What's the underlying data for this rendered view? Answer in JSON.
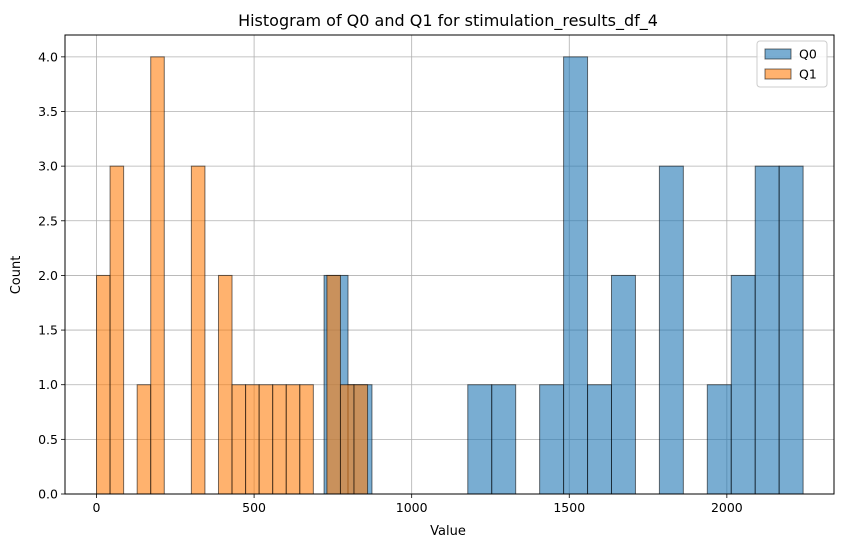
{
  "chart_data": {
    "type": "histogram",
    "title": "Histogram of Q0 and Q1 for stimulation_results_df_4",
    "xlabel": "Value",
    "ylabel": "Count",
    "xlim": [
      -100,
      2340
    ],
    "ylim": [
      0,
      4.2
    ],
    "x_ticks": [
      {
        "value": 0,
        "label": "0"
      },
      {
        "value": 500,
        "label": "500"
      },
      {
        "value": 1000,
        "label": "1000"
      },
      {
        "value": 1500,
        "label": "1500"
      },
      {
        "value": 2000,
        "label": "2000"
      }
    ],
    "y_ticks": [
      {
        "value": 0,
        "label": "0.0"
      },
      {
        "value": 0.5,
        "label": "0.5"
      },
      {
        "value": 1,
        "label": "1.0"
      },
      {
        "value": 1.5,
        "label": "1.5"
      },
      {
        "value": 2,
        "label": "2.0"
      },
      {
        "value": 2.5,
        "label": "2.5"
      },
      {
        "value": 3,
        "label": "3.0"
      },
      {
        "value": 3.5,
        "label": "3.5"
      },
      {
        "value": 4,
        "label": "4.0"
      }
    ],
    "grid": true,
    "legend_position": "top-right",
    "series": [
      {
        "name": "Q0",
        "color": "#1f77b4",
        "bins": [
          {
            "x0": 722,
            "x1": 798,
            "count": 2
          },
          {
            "x0": 798,
            "x1": 874,
            "count": 1
          },
          {
            "x0": 1178,
            "x1": 1254,
            "count": 1
          },
          {
            "x0": 1254,
            "x1": 1330,
            "count": 1
          },
          {
            "x0": 1406,
            "x1": 1482,
            "count": 1
          },
          {
            "x0": 1482,
            "x1": 1558,
            "count": 4
          },
          {
            "x0": 1558,
            "x1": 1634,
            "count": 1
          },
          {
            "x0": 1634,
            "x1": 1710,
            "count": 2
          },
          {
            "x0": 1786,
            "x1": 1862,
            "count": 3
          },
          {
            "x0": 1938,
            "x1": 2014,
            "count": 1
          },
          {
            "x0": 2014,
            "x1": 2090,
            "count": 2
          },
          {
            "x0": 2090,
            "x1": 2166,
            "count": 3
          },
          {
            "x0": 2166,
            "x1": 2242,
            "count": 3
          }
        ]
      },
      {
        "name": "Q1",
        "color": "#ff7f0e",
        "bins": [
          {
            "x0": 0,
            "x1": 43,
            "count": 2
          },
          {
            "x0": 43,
            "x1": 86,
            "count": 3
          },
          {
            "x0": 129,
            "x1": 172,
            "count": 1
          },
          {
            "x0": 172,
            "x1": 215,
            "count": 4
          },
          {
            "x0": 301,
            "x1": 344,
            "count": 3
          },
          {
            "x0": 387,
            "x1": 430,
            "count": 2
          },
          {
            "x0": 430,
            "x1": 473,
            "count": 1
          },
          {
            "x0": 473,
            "x1": 516,
            "count": 1
          },
          {
            "x0": 516,
            "x1": 559,
            "count": 1
          },
          {
            "x0": 559,
            "x1": 602,
            "count": 1
          },
          {
            "x0": 602,
            "x1": 645,
            "count": 1
          },
          {
            "x0": 645,
            "x1": 688,
            "count": 1
          },
          {
            "x0": 731,
            "x1": 774,
            "count": 2
          },
          {
            "x0": 774,
            "x1": 817,
            "count": 1
          },
          {
            "x0": 817,
            "x1": 860,
            "count": 1
          }
        ]
      }
    ]
  }
}
